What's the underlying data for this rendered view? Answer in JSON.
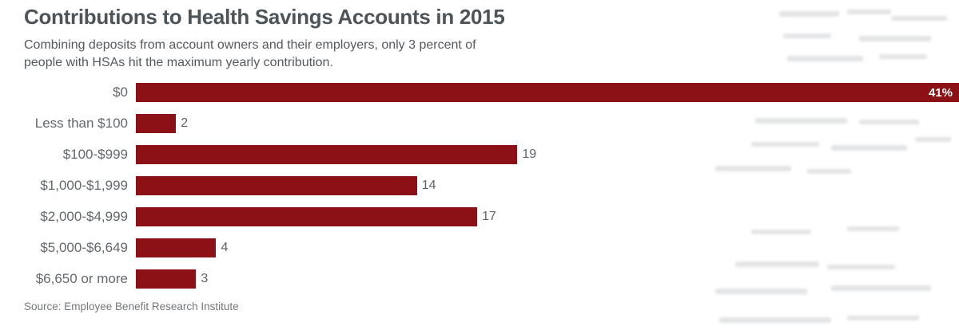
{
  "header": {
    "title": "Contributions to Health Savings Accounts in 2015",
    "subtitle_line1": "Combining deposits from account owners and their employers, only 3 percent of",
    "subtitle_line2": "people with HSAs hit the maximum yearly contribution."
  },
  "chart_data": {
    "type": "bar",
    "orientation": "horizontal",
    "title": "Contributions to Health Savings Accounts in 2015",
    "categories": [
      "$0",
      "Less than $100",
      "$100-$999",
      "$1,000-$1,999",
      "$2,000-$4,999",
      "$5,000-$6,649",
      "$6,650 or more"
    ],
    "values": [
      41,
      2,
      19,
      14,
      17,
      4,
      3
    ],
    "value_labels": [
      "41%",
      "2",
      "19",
      "14",
      "17",
      "4",
      "3"
    ],
    "unit": "percent of people with HSAs",
    "xlim": [
      0,
      41
    ],
    "grid": false,
    "legend": false,
    "bar_color": "#8c1116",
    "first_value_label_inside": true
  },
  "footer": {
    "source": "Source: Employee Benefit Research Institute"
  }
}
